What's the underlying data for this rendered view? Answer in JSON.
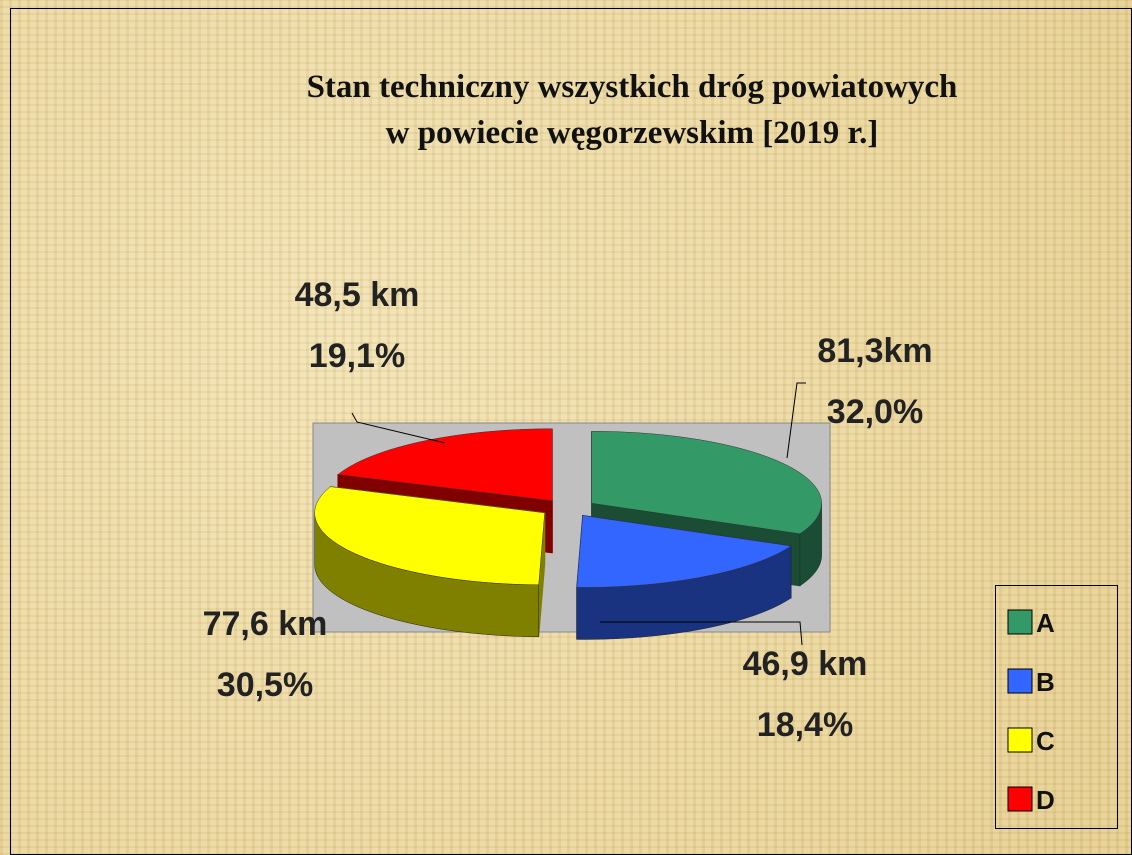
{
  "chart_data": {
    "type": "pie3d",
    "title": "Stan techniczny wszystkich dróg powiatowych",
    "subtitle": "w powiecie węgorzewskim [2019 r.]",
    "categories": [
      "A",
      "B",
      "C",
      "D"
    ],
    "values": [
      81.3,
      46.9,
      77.6,
      48.5
    ],
    "value_labels": [
      "81,3km",
      "46,9 km",
      "77,6 km",
      "48,5 km"
    ],
    "percents": [
      32.0,
      18.4,
      30.5,
      19.1
    ],
    "percent_labels": [
      "32,0%",
      "18,4%",
      "30,5%",
      "19,1%"
    ],
    "colors": [
      "#339966",
      "#3366ff",
      "#ffff00",
      "#ff0000"
    ],
    "legend": "right-bottom"
  }
}
